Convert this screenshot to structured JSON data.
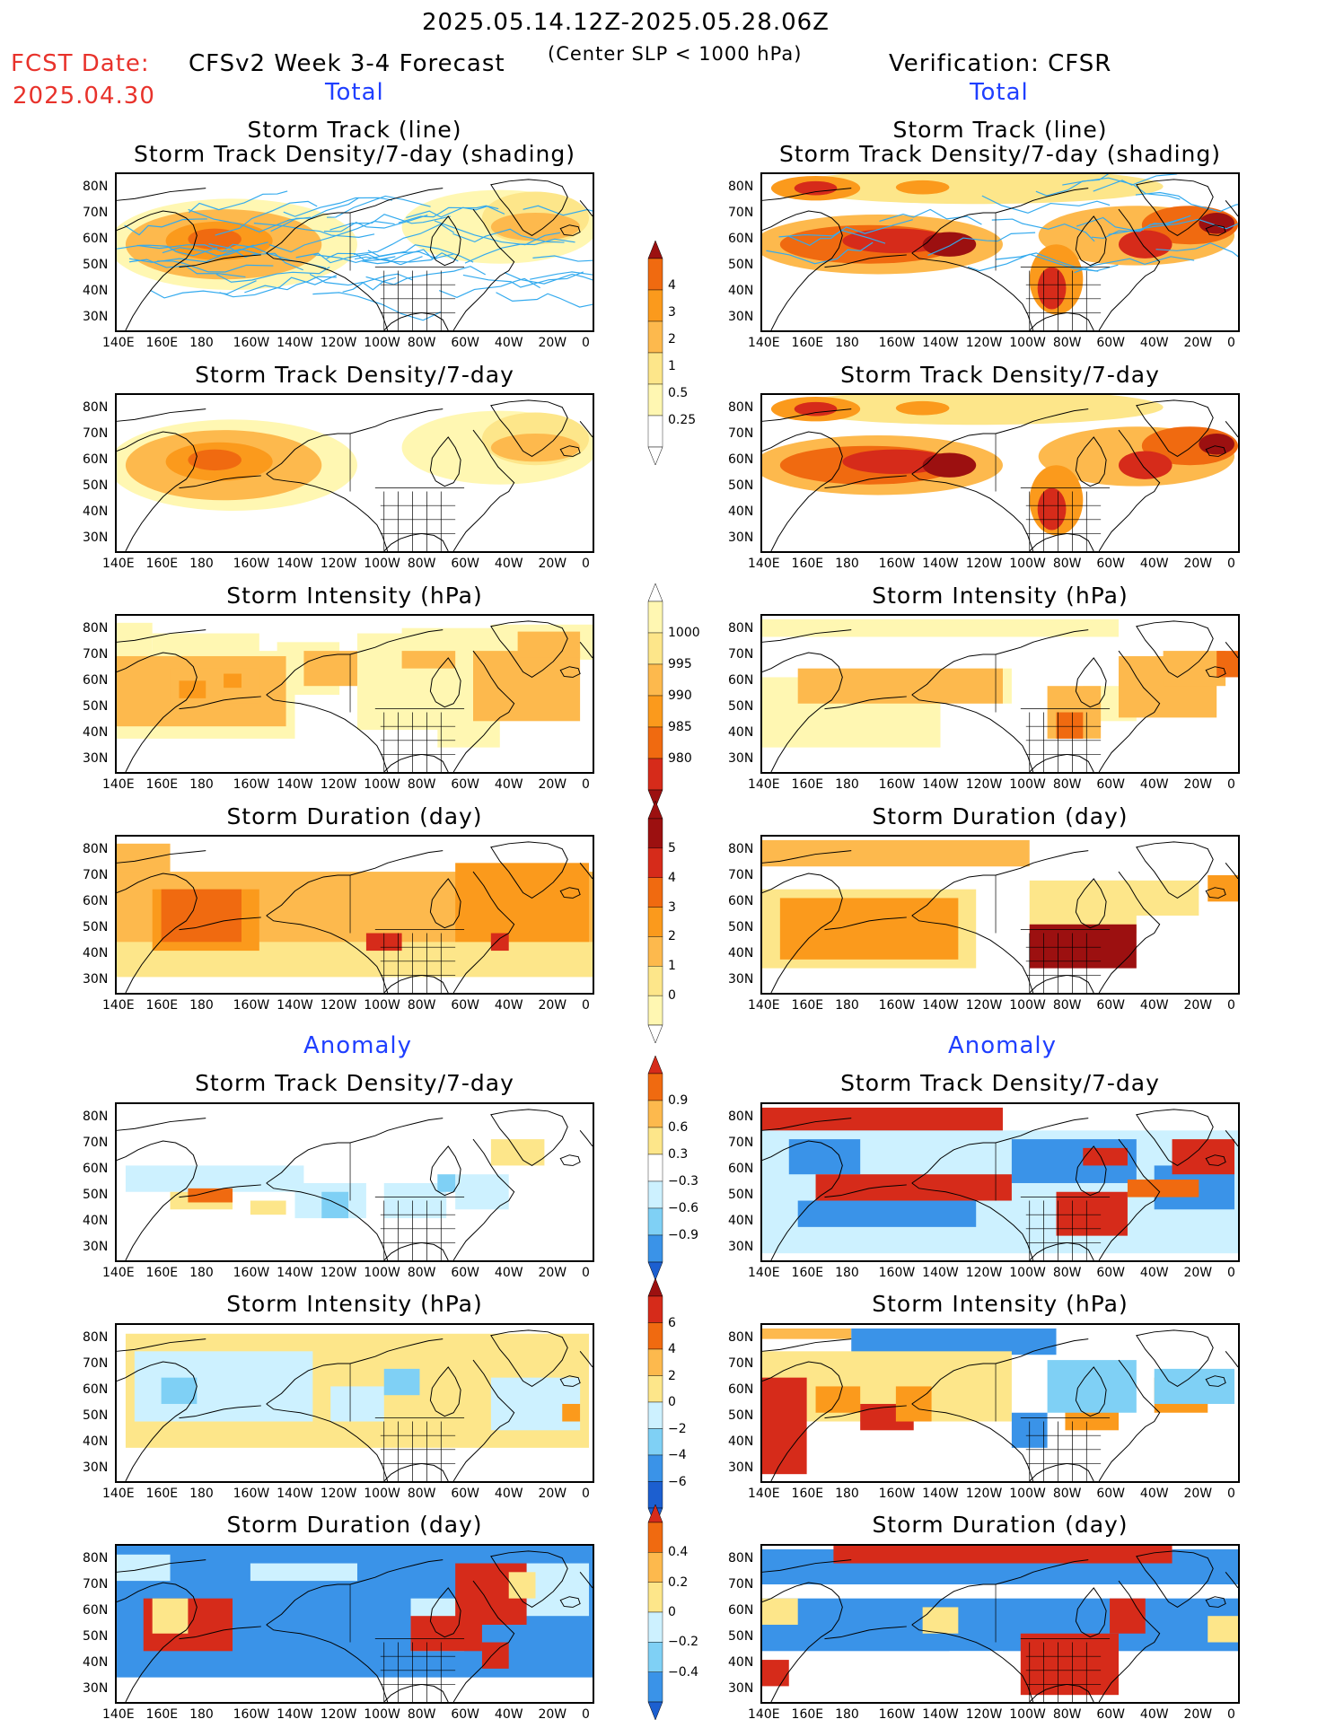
{
  "header": {
    "date_range": "2025.05.14.12Z-2025.05.28.06Z",
    "fcst_label": "FCST Date:",
    "fcst_date": "2025.04.30",
    "model_title": "CFSv2 Week 3-4 Forecast",
    "criterion": "(Center SLP < 1000 hPa)",
    "verification": "Verification: CFSR",
    "section_total_left": "Total",
    "section_total_right": "Total",
    "section_anom_left": "Anomaly",
    "section_anom_right": "Anomaly"
  },
  "axes": {
    "lat_labels": [
      "80N",
      "70N",
      "60N",
      "50N",
      "40N",
      "30N"
    ],
    "lon_labels": [
      "140E",
      "160E",
      "180",
      "160W",
      "140W",
      "120W",
      "100W",
      "80W",
      "60W",
      "40W",
      "20W",
      "0"
    ]
  },
  "panel_titles": {
    "track1": "Storm Track (line)",
    "track2": "Storm Track Density/7-day (shading)",
    "density": "Storm Track Density/7-day",
    "intensity": "Storm Intensity (hPa)",
    "duration": "Storm Duration (day)"
  },
  "colorbars": {
    "density_total": [
      "4",
      "3",
      "2",
      "1",
      "0.5",
      "0.25"
    ],
    "intensity_total": [
      "1000",
      "995",
      "990",
      "985",
      "980"
    ],
    "duration_total": [
      "5",
      "4",
      "3",
      "2",
      "1",
      "0"
    ],
    "density_anom": [
      "0.9",
      "0.6",
      "0.3",
      "−0.3",
      "−0.6",
      "−0.9"
    ],
    "intensity_anom": [
      "6",
      "4",
      "2",
      "0",
      "−2",
      "−4",
      "−6"
    ],
    "duration_anom": [
      "0.4",
      "0.2",
      "0",
      "−0.2",
      "−0.4"
    ]
  },
  "colors": {
    "warm": [
      "#fff7b2",
      "#fde68a",
      "#fdb94d",
      "#fb9a1c",
      "#f06a10",
      "#d62b1a",
      "#9c1010"
    ],
    "cool": [
      "#cdf1ff",
      "#7fd0f5",
      "#3a93e8",
      "#1c5fd0"
    ],
    "track_line": "#33aaee"
  }
}
